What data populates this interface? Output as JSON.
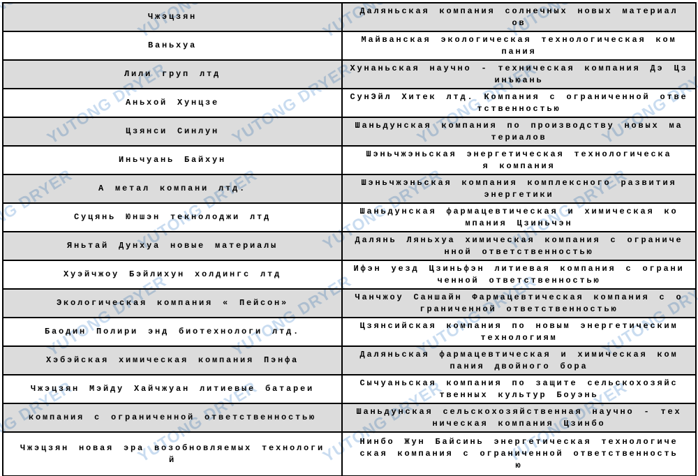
{
  "watermark": {
    "text": "YUTONG DRYER",
    "color": "#9dbfe4"
  },
  "table": {
    "rows": [
      {
        "left": "Чжэцзян",
        "right": "Даляньская компания солнечных новых материал\nов"
      },
      {
        "left": "Ваньхуа",
        "right": "Майванская экологическая технологическая ком\nпания"
      },
      {
        "left": "Лили груп лтд",
        "right": "Хунаньская научно - техническая компания Дэ Цз\nинъюань"
      },
      {
        "left": "Аньхой Хунцзе",
        "right": "СунЭйл Хитек лтд. Компания с ограниченной отве\nтственностью"
      },
      {
        "left": "Цзянси Синлун",
        "right": "Шаньдунская компания по производству новых ма\nтериалов"
      },
      {
        "left": "Иньчуань Байхун",
        "right": "Шэньчжэньская энергетическая технологическа\nя компания"
      },
      {
        "left": "А метал компани лтд.",
        "right": "Шэньчжэньская компания комплексного развития\nэнергетики"
      },
      {
        "left": "Суцянь Юншэн текнолоджи лтд",
        "right": "Шаньдунская фармацевтическая и химическая ко\nмпания Цзиньчэн"
      },
      {
        "left": "Яньтай Дунхуа новые материалы",
        "right": "Далянь Ляньхуа химическая компания с ограниче\nнной ответственностью"
      },
      {
        "left": "Хуэйчжоу Бэйлихун холдингс лтд",
        "right": "Ифэн уезд Цзиньфэн литиевая компания с ограни\nченной ответственностью"
      },
      {
        "left": "Экологическая компания « Пейсон»",
        "right": "Чанчжоу Саншайн Фармацевтическая компания с о\nграниченной ответственностью"
      },
      {
        "left": "Баодин Полири энд биотехнологи лтд.",
        "right": "Цзянсийская компания по новым энергетическим\nтехнологиям"
      },
      {
        "left": "Хэбэйская химическая компания Пэнфа",
        "right": "Даляньская фармацевтическая и химическая ком\nпания двойного бора"
      },
      {
        "left": "Чжэцзян Мэйду Хайчжуан литиевые батареи",
        "right": "Сычуаньская компания по защите сельскохозяйс\nтвенных культур Боуэнь"
      },
      {
        "left": "компания с ограниченной ответственностью",
        "right": "Шаньдунская сельскохозяйственная научно - тех\nническая компания Цзинбо"
      },
      {
        "left": "Чжэцзян новая эра возобновляемых технологи\nй",
        "right": "Нинбо Жун Байсинь энергетическая технологиче\nская компания с ограниченной ответственность\nю"
      }
    ]
  }
}
